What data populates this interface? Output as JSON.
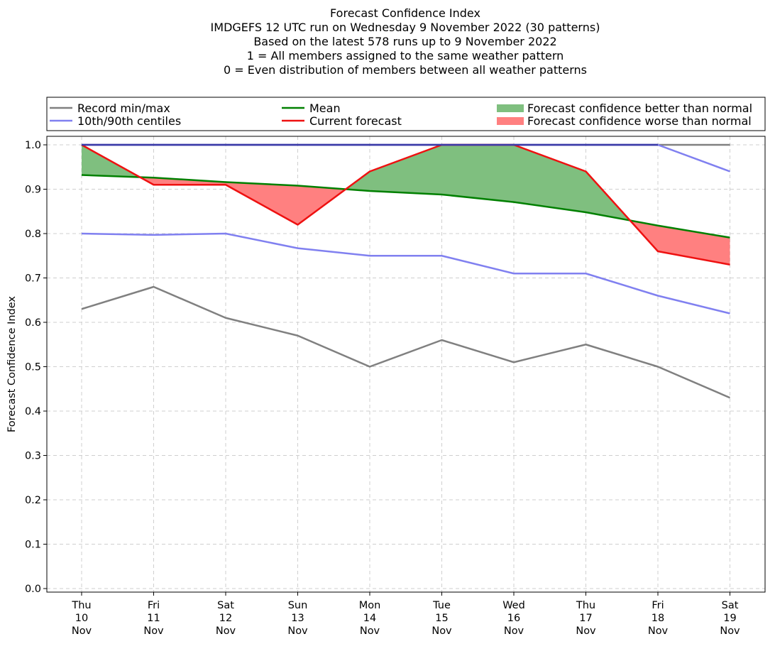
{
  "chart_data": {
    "type": "line",
    "title_lines": [
      "Forecast Confidence Index",
      "IMDGEFS 12 UTC run on Wednesday 9 November 2022 (30 patterns)",
      "Based on the latest 578 runs up to 9 November 2022",
      "1 = All members assigned to the same weather pattern",
      "0 = Even distribution of members between all weather patterns"
    ],
    "ylabel": "Forecast Confidence Index",
    "xlabel": "",
    "ylim": [
      0,
      1.0
    ],
    "yticks": [
      "0.0",
      "0.1",
      "0.2",
      "0.3",
      "0.4",
      "0.5",
      "0.6",
      "0.7",
      "0.8",
      "0.9",
      "1.0"
    ],
    "x_categories": [
      {
        "day": "Thu",
        "date": "10",
        "month": "Nov"
      },
      {
        "day": "Fri",
        "date": "11",
        "month": "Nov"
      },
      {
        "day": "Sat",
        "date": "12",
        "month": "Nov"
      },
      {
        "day": "Sun",
        "date": "13",
        "month": "Nov"
      },
      {
        "day": "Mon",
        "date": "14",
        "month": "Nov"
      },
      {
        "day": "Tue",
        "date": "15",
        "month": "Nov"
      },
      {
        "day": "Wed",
        "date": "16",
        "month": "Nov"
      },
      {
        "day": "Thu",
        "date": "17",
        "month": "Nov"
      },
      {
        "day": "Fri",
        "date": "18",
        "month": "Nov"
      },
      {
        "day": "Sat",
        "date": "19",
        "month": "Nov"
      }
    ],
    "grid": true,
    "legend_position": "top",
    "legend": [
      {
        "label": "Record min/max",
        "kind": "line",
        "color": "#808080"
      },
      {
        "label": "Mean",
        "kind": "line",
        "color": "#008000"
      },
      {
        "label": "Forecast confidence better than normal",
        "kind": "patch",
        "color": "#7fbf7f"
      },
      {
        "label": "10th/90th centiles",
        "kind": "line",
        "color": "#8080f0"
      },
      {
        "label": "Current forecast",
        "kind": "line",
        "color": "#ee1111"
      },
      {
        "label": "Forecast confidence worse than normal",
        "kind": "patch",
        "color": "#ff8080"
      }
    ],
    "series": [
      {
        "key": "record_min",
        "color": "#808080",
        "values": [
          0.63,
          0.68,
          0.61,
          0.57,
          0.5,
          0.56,
          0.51,
          0.55,
          0.5,
          0.43
        ]
      },
      {
        "key": "record_max",
        "color": "#808080",
        "values": [
          1.0,
          1.0,
          1.0,
          1.0,
          1.0,
          1.0,
          1.0,
          1.0,
          1.0,
          1.0
        ]
      },
      {
        "key": "p10",
        "color": "#8080f0",
        "values": [
          0.8,
          0.797,
          0.8,
          0.767,
          0.75,
          0.75,
          0.71,
          0.71,
          0.66,
          0.62
        ]
      },
      {
        "key": "p90",
        "color": "#8080f0",
        "values": [
          1.0,
          1.0,
          1.0,
          1.0,
          1.0,
          1.0,
          1.0,
          1.0,
          1.0,
          0.94
        ]
      },
      {
        "key": "mean",
        "color": "#008000",
        "values": [
          0.932,
          0.926,
          0.916,
          0.908,
          0.896,
          0.888,
          0.871,
          0.848,
          0.818,
          0.791
        ]
      },
      {
        "key": "current",
        "color": "#ee1111",
        "values": [
          1.0,
          0.91,
          0.91,
          0.82,
          0.94,
          1.0,
          1.0,
          0.94,
          0.76,
          0.73
        ]
      }
    ],
    "fill_better_color": "#7fbf7f",
    "fill_worse_color": "#ff8080"
  }
}
